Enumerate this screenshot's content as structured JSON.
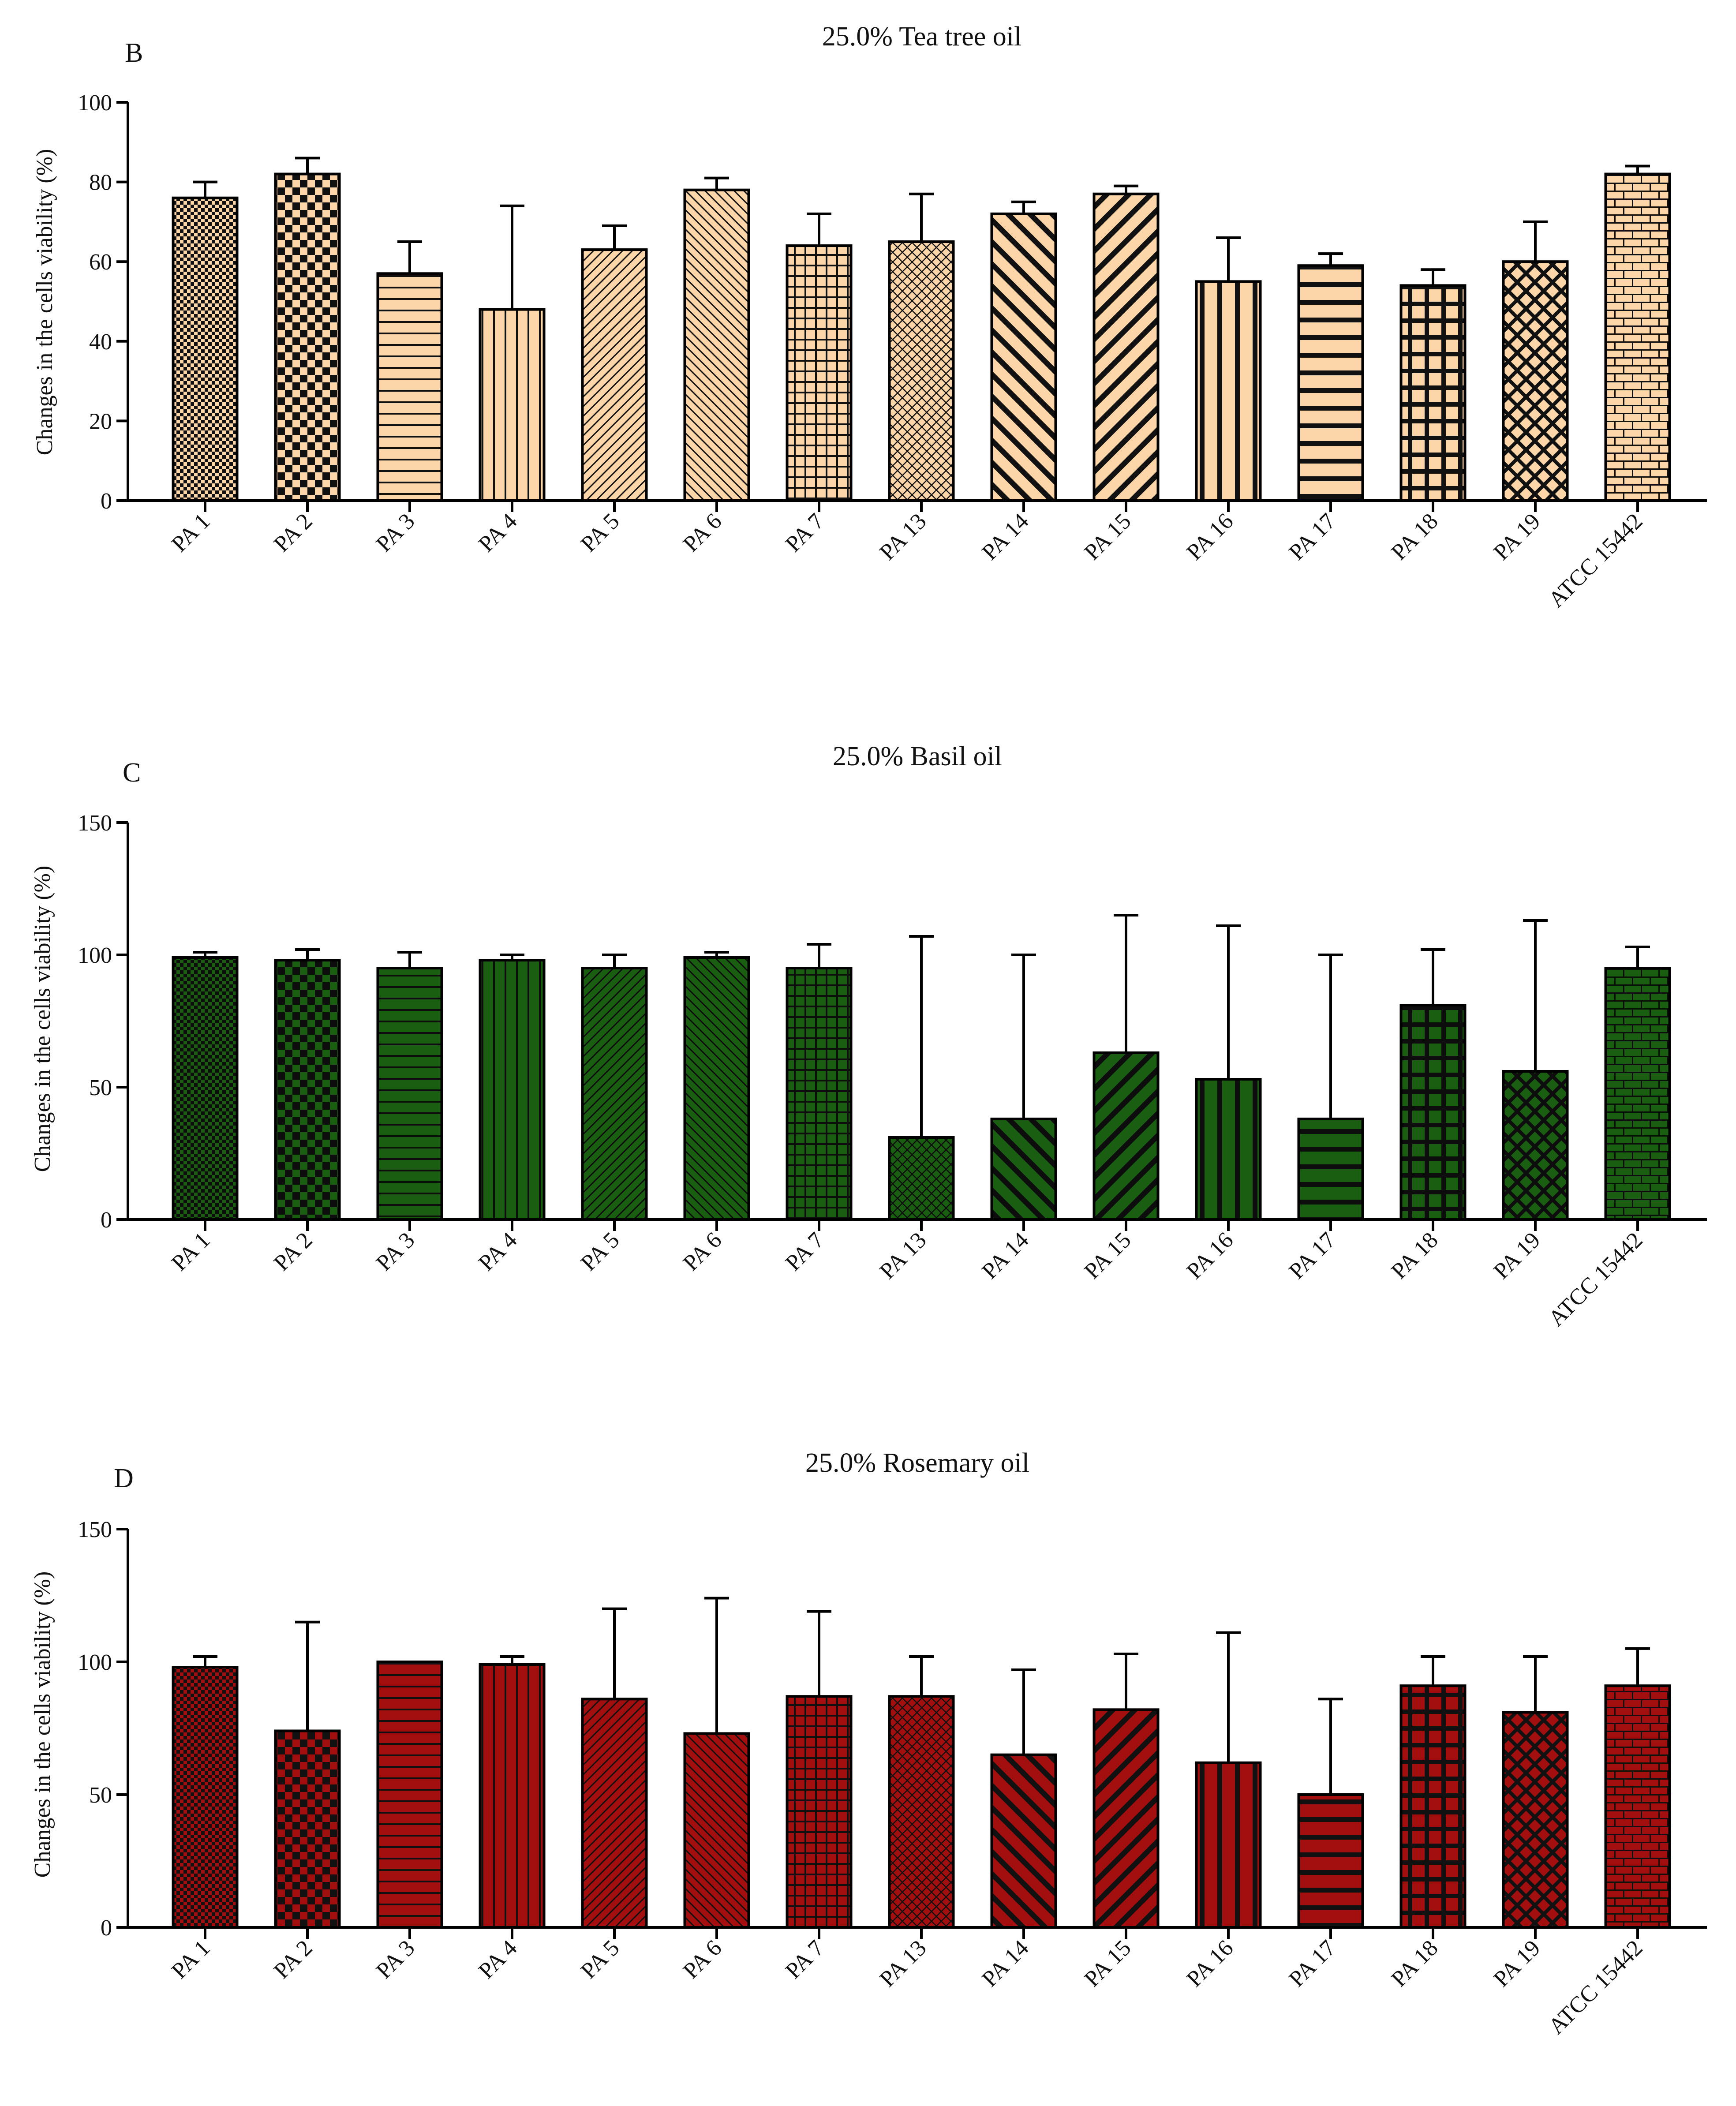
{
  "chart_data": [
    {
      "type": "bar",
      "panel": "B",
      "title": "25.0% Tea tree oil",
      "ylabel": "Changes in the cells viability (%)",
      "xlabel": "",
      "ylim": [
        0,
        100
      ],
      "yticks": [
        0,
        20,
        40,
        60,
        80,
        100
      ],
      "categories": [
        "PA 1",
        "PA 2",
        "PA 3",
        "PA 4",
        "PA 5",
        "PA 6",
        "PA 7",
        "PA 13",
        "PA 14",
        "PA 15",
        "PA 16",
        "PA 17",
        "PA 18",
        "PA 19",
        "ATCC 15442"
      ],
      "values": [
        76,
        82,
        57,
        48,
        63,
        78,
        64,
        65,
        72,
        77,
        55,
        59,
        54,
        60,
        82
      ],
      "error_upper": [
        80,
        86,
        65,
        74,
        69,
        81,
        72,
        77,
        75,
        79,
        66,
        62,
        58,
        70,
        84
      ],
      "bar_color": "#fcd5a8",
      "pattern_color": "#111111",
      "patterns": [
        "fine-check",
        "check",
        "hlines",
        "vlines",
        "diag-fine",
        "diag-fine-back",
        "grid-fine",
        "diag-cross-fine",
        "diag-thick-back",
        "diag-thick",
        "vlines-thick",
        "hlines-thick",
        "grid-thick",
        "diamond",
        "brick"
      ],
      "grid": false
    },
    {
      "type": "bar",
      "panel": "C",
      "title": "25.0% Basil oil",
      "ylabel": "Changes in the cells viability (%)",
      "xlabel": "",
      "ylim": [
        0,
        150
      ],
      "yticks": [
        0,
        50,
        100,
        150
      ],
      "categories": [
        "PA 1",
        "PA 2",
        "PA 3",
        "PA 4",
        "PA 5",
        "PA 6",
        "PA 7",
        "PA 13",
        "PA 14",
        "PA 15",
        "PA 16",
        "PA 17",
        "PA 18",
        "PA 19",
        "ATCC 15442"
      ],
      "values": [
        99,
        98,
        95,
        98,
        95,
        99,
        95,
        31,
        38,
        63,
        53,
        38,
        81,
        56,
        95
      ],
      "error_upper": [
        101,
        102,
        101,
        100,
        100,
        101,
        104,
        107,
        100,
        115,
        111,
        100,
        102,
        113,
        103
      ],
      "bar_color": "#1a5e12",
      "pattern_color": "#0d0d0d",
      "patterns": [
        "fine-check",
        "check",
        "hlines",
        "vlines",
        "diag-fine",
        "diag-fine-back",
        "grid-fine",
        "diag-cross-fine",
        "diag-thick-back",
        "diag-thick",
        "vlines-thick",
        "hlines-thick",
        "grid-thick",
        "diamond",
        "brick"
      ],
      "grid": false
    },
    {
      "type": "bar",
      "panel": "D",
      "title": "25.0% Rosemary oil",
      "ylabel": "Changes in the cells viability (%)",
      "xlabel": "",
      "ylim": [
        0,
        150
      ],
      "yticks": [
        0,
        50,
        100,
        150
      ],
      "categories": [
        "PA 1",
        "PA 2",
        "PA 3",
        "PA 4",
        "PA 5",
        "PA 6",
        "PA 7",
        "PA 13",
        "PA 14",
        "PA 15",
        "PA 16",
        "PA 17",
        "PA 18",
        "PA 19",
        "ATCC 15442"
      ],
      "values": [
        98,
        74,
        100,
        99,
        86,
        73,
        87,
        87,
        65,
        82,
        62,
        50,
        91,
        81,
        91
      ],
      "error_upper": [
        102,
        115,
        100,
        102,
        120,
        124,
        119,
        102,
        97,
        103,
        111,
        86,
        102,
        102,
        105
      ],
      "bar_color": "#a30e0e",
      "pattern_color": "#111111",
      "patterns": [
        "fine-check",
        "check",
        "hlines",
        "vlines",
        "diag-fine",
        "diag-fine-back",
        "grid-fine",
        "diag-cross-fine",
        "diag-thick-back",
        "diag-thick",
        "vlines-thick",
        "hlines-thick",
        "grid-thick",
        "diamond",
        "brick"
      ],
      "grid": false
    }
  ]
}
